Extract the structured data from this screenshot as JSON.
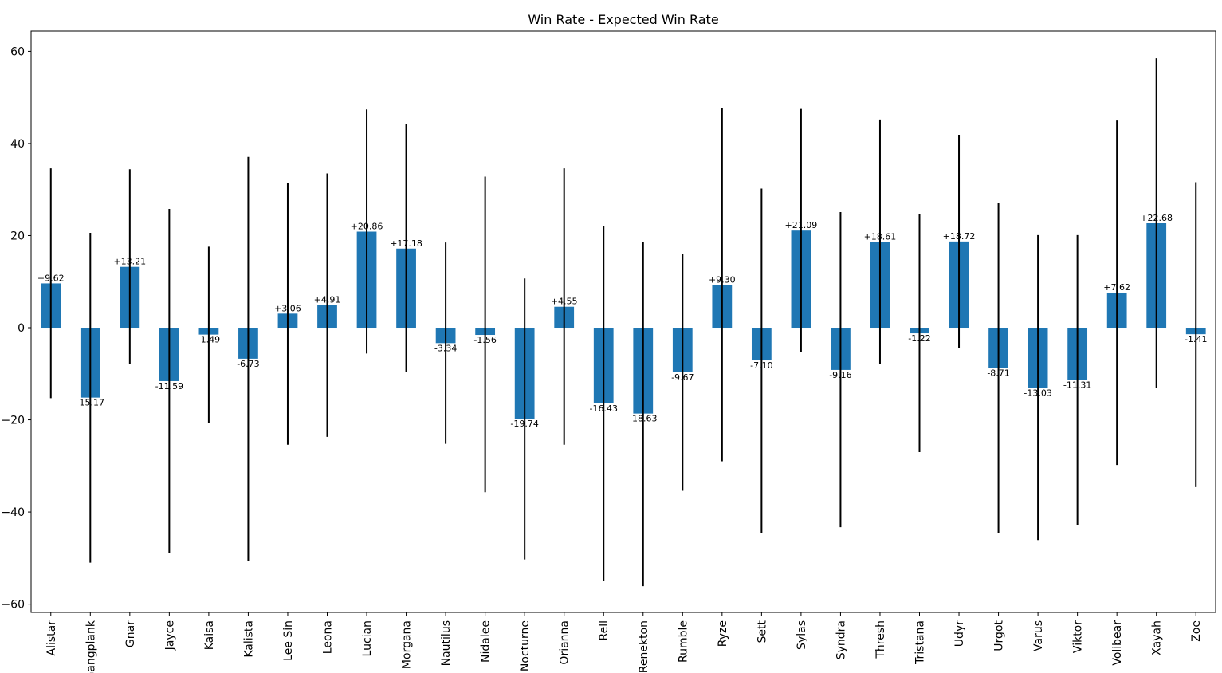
{
  "chart_data": {
    "type": "bar",
    "title": "Win Rate - Expected Win Rate",
    "xlabel": "",
    "ylabel": "",
    "ylim": [
      -61.8,
      64.4
    ],
    "yticks": [
      -60,
      -40,
      -20,
      0,
      20,
      40,
      60
    ],
    "grid": false,
    "legend": "none",
    "bar_color": "#1f77b4",
    "errorbar_color": "#000000",
    "categories": [
      "Alistar",
      "Gangplank",
      "Gnar",
      "Jayce",
      "Kaisa",
      "Kalista",
      "Lee Sin",
      "Leona",
      "Lucian",
      "Morgana",
      "Nautilus",
      "Nidalee",
      "Nocturne",
      "Orianna",
      "Rell",
      "Renekton",
      "Rumble",
      "Ryze",
      "Sett",
      "Sylas",
      "Syndra",
      "Thresh",
      "Tristana",
      "Udyr",
      "Urgot",
      "Varus",
      "Viktor",
      "Volibear",
      "Xayah",
      "Zoe"
    ],
    "values": [
      9.62,
      -15.17,
      13.21,
      -11.59,
      -1.49,
      -6.73,
      3.06,
      4.91,
      20.86,
      17.18,
      -3.34,
      -1.56,
      -19.74,
      4.55,
      -16.43,
      -18.63,
      -9.67,
      9.3,
      -7.1,
      21.09,
      -9.16,
      18.61,
      -1.22,
      18.72,
      -8.71,
      -13.03,
      -11.31,
      7.62,
      22.68,
      -1.41
    ],
    "labels": [
      "+9.62",
      "-15.17",
      "+13.21",
      "-11.59",
      "-1.49",
      "-6.73",
      "+3.06",
      "+4.91",
      "+20.86",
      "+17.18",
      "-3.34",
      "-1.56",
      "-19.74",
      "+4.55",
      "-16.43",
      "-18.63",
      "-9.67",
      "+9.30",
      "-7.10",
      "+21.09",
      "-9.16",
      "+18.61",
      "-1.22",
      "+18.72",
      "-8.71",
      "-13.03",
      "-11.31",
      "+7.62",
      "+22.68",
      "-1.41"
    ],
    "error_low": [
      -15.3,
      -51.0,
      -7.9,
      -49.0,
      -20.6,
      -50.6,
      -25.4,
      -23.7,
      -5.6,
      -9.7,
      -25.2,
      -35.7,
      -50.3,
      -25.4,
      -54.9,
      -56.1,
      -35.4,
      -29.0,
      -44.5,
      -5.3,
      -43.3,
      -7.9,
      -27.0,
      -4.4,
      -44.5,
      -46.1,
      -42.8,
      -29.8,
      -13.1,
      -34.6
    ],
    "error_high": [
      34.6,
      20.6,
      34.4,
      25.8,
      17.6,
      37.1,
      31.4,
      33.5,
      47.4,
      44.2,
      18.5,
      32.8,
      10.7,
      34.6,
      22.0,
      18.7,
      16.1,
      47.7,
      30.2,
      47.5,
      25.1,
      45.2,
      24.6,
      41.9,
      27.1,
      20.1,
      20.1,
      45.0,
      58.5,
      31.6
    ]
  }
}
